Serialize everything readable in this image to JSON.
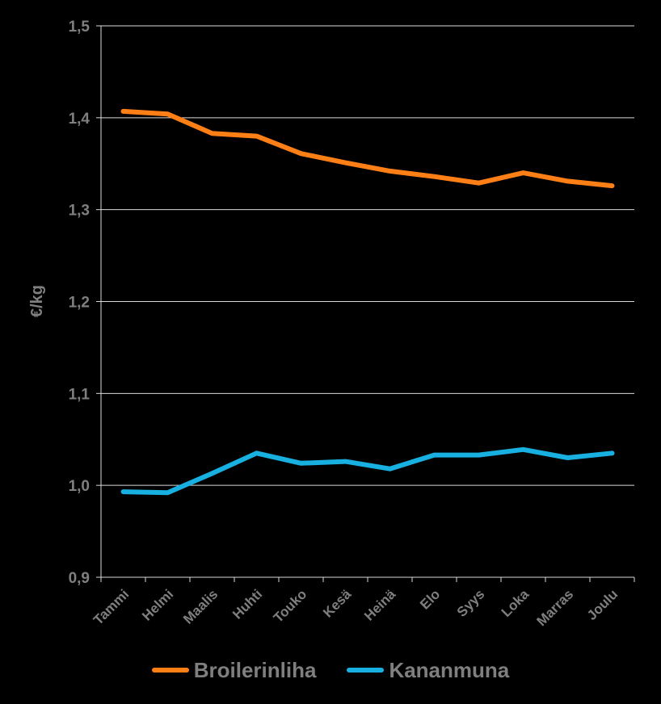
{
  "chart_data": {
    "type": "line",
    "title": "",
    "xlabel": "",
    "ylabel": "€/kg",
    "categories": [
      "Tammi",
      "Helmi",
      "Maalis",
      "Huhti",
      "Touko",
      "Kesä",
      "Heinä",
      "Elo",
      "Syys",
      "Loka",
      "Marras",
      "Joulu"
    ],
    "yticks": [
      "0,9",
      "1,0",
      "1,1",
      "1,2",
      "1,3",
      "1,4",
      "1,5"
    ],
    "ylim": [
      0.9,
      1.5
    ],
    "grid": true,
    "legend_position": "bottom",
    "series": [
      {
        "name": "Broilerinliha",
        "color": "#ff7f17",
        "values": [
          1.407,
          1.404,
          1.383,
          1.38,
          1.361,
          1.351,
          1.342,
          1.336,
          1.329,
          1.34,
          1.331,
          1.326
        ]
      },
      {
        "name": "Kananmuna",
        "color": "#17b0e0",
        "values": [
          0.993,
          0.992,
          1.013,
          1.035,
          1.024,
          1.026,
          1.018,
          1.033,
          1.033,
          1.039,
          1.03,
          1.035
        ]
      }
    ]
  }
}
